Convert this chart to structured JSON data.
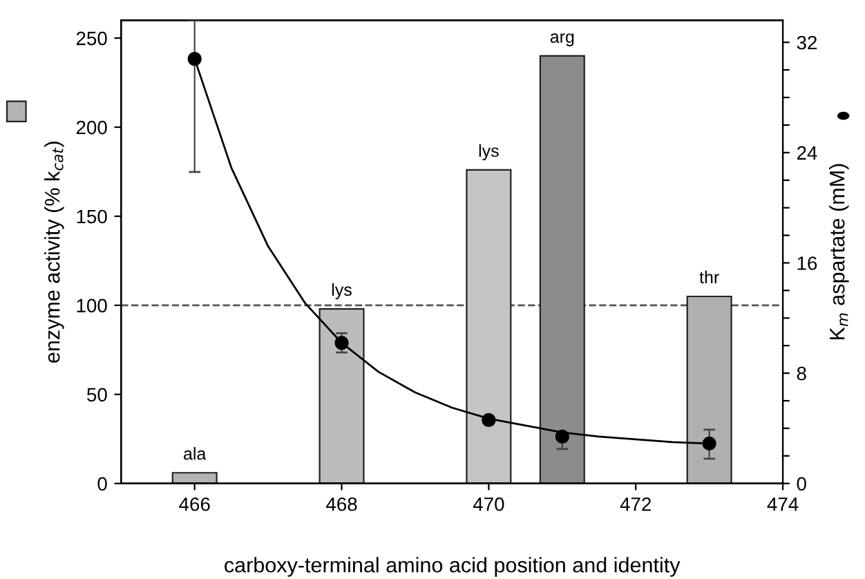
{
  "chart_data": {
    "type": "bar",
    "xlabel": "carboxy-terminal amino acid position and identity",
    "ylabel": "enzyme activity (% k$_{cat}$)",
    "y2label": "K$_{m}$ aspartate (mM)",
    "xlim": [
      465,
      474
    ],
    "xticks": [
      466,
      468,
      470,
      472,
      474
    ],
    "ylim": [
      0,
      260
    ],
    "yticks": [
      0,
      50,
      100,
      150,
      200,
      250
    ],
    "y2lim": [
      0,
      33.6
    ],
    "y2ticks": [
      0,
      {
        "value": 2,
        "label": null
      },
      {
        "value": 4,
        "label": null
      },
      {
        "value": 6,
        "label": null
      },
      8,
      {
        "value": 10,
        "label": null
      },
      {
        "value": 12,
        "label": null
      },
      {
        "value": 14,
        "label": null
      },
      16,
      {
        "value": 18,
        "label": null
      },
      {
        "value": 20,
        "label": null
      },
      {
        "value": 22,
        "label": null
      },
      24,
      {
        "value": 26,
        "label": null
      },
      {
        "value": 28,
        "label": null
      },
      {
        "value": 30,
        "label": null
      },
      32
    ],
    "series": [
      {
        "x": [
          466,
          468,
          470,
          471,
          473
        ],
        "values": [
          6,
          98,
          176,
          240,
          105
        ],
        "colors": [
          "#b4b4b4",
          "#bcbcbc",
          "#c4c4c4",
          "#8c8c8c",
          "#b0b0b0"
        ]
      },
      {
        "type": "scatter",
        "axis": "y2",
        "x": [
          466,
          468,
          470,
          471,
          473
        ],
        "values": [
          30.8,
          10.2,
          4.6,
          3.4,
          2.9
        ],
        "errors": [
          [
            22.6,
            33.6
          ],
          [
            9.5,
            10.9
          ],
          null,
          [
            2.5,
            3.4
          ],
          [
            1.8,
            3.9
          ]
        ],
        "color": "#000000",
        "marker": "circle"
      },
      {
        "type": "line",
        "axis": "y2",
        "x": [
          466,
          466.5,
          467,
          467.5,
          468,
          468.5,
          469,
          469.5,
          470,
          470.5,
          471,
          471.5,
          472,
          472.5,
          473
        ],
        "values": [
          30.8,
          22.9,
          17.2,
          13.1,
          10.2,
          8.1,
          6.6,
          5.5,
          4.7,
          4.2,
          3.7,
          3.4,
          3.2,
          3.0,
          2.9
        ],
        "color": "#000000",
        "line_style": "solid",
        "marker": "none"
      }
    ],
    "ref_lines": [
      {
        "axis": "y",
        "value": 100,
        "line_style": "dashed",
        "color": "#555555"
      }
    ],
    "annotations": [
      {
        "text": "ala",
        "x": 466,
        "y": 6
      },
      {
        "text": "lys",
        "x": 468,
        "y": 98
      },
      {
        "text": "lys",
        "x": 470,
        "y": 176
      },
      {
        "text": "arg",
        "x": 471,
        "y": 240
      },
      {
        "text": "thr",
        "x": 473,
        "y": 105
      }
    ],
    "grid": false,
    "legend": false
  }
}
